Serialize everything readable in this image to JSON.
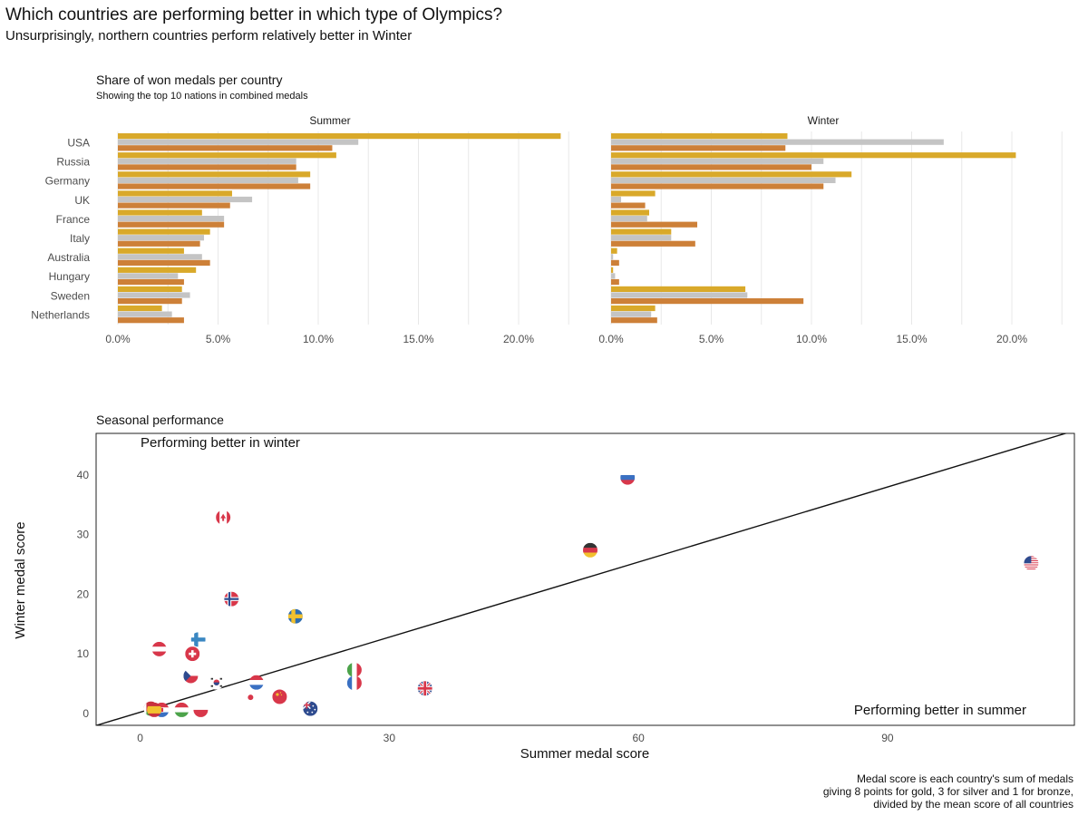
{
  "title": "Which countries are performing better in which type of Olympics?",
  "subtitle": "Unsurprisingly, northern countries perform relatively better in Winter",
  "colors": {
    "gold": "#D9A92A",
    "silver": "#C4C4C4",
    "bronze": "#CD8038",
    "grid": "#E8E8E8",
    "text": "#4D4D4D"
  },
  "bar_panel": {
    "title": "Share of won medals per country",
    "subtitle": "Showing the top 10 nations in combined medals"
  },
  "scatter_panel": {
    "title": "Seasonal performance",
    "annotation_winter": "Performing better in winter",
    "annotation_summer": "Performing better in summer"
  },
  "caption_lines": [
    "Medal score is each country's sum of medals",
    "giving 8 points for gold, 3 for silver and 1 for bronze,",
    "divided by the mean score of all countries"
  ],
  "chart_data": [
    {
      "type": "bar",
      "orientation": "horizontal",
      "facet": "Summer",
      "categories": [
        "USA",
        "Russia",
        "Germany",
        "UK",
        "France",
        "Italy",
        "Australia",
        "Hungary",
        "Sweden",
        "Netherlands"
      ],
      "series": [
        {
          "values": [
            22.1,
            10.9,
            9.6,
            5.7,
            4.2,
            4.6,
            3.3,
            3.9,
            3.2,
            2.2
          ]
        },
        {
          "values": [
            12.0,
            8.9,
            9.0,
            6.7,
            5.3,
            4.3,
            4.2,
            3.0,
            3.6,
            2.7
          ]
        },
        {
          "values": [
            10.7,
            8.9,
            9.6,
            5.6,
            5.3,
            4.1,
            4.6,
            3.3,
            3.2,
            3.3
          ]
        }
      ],
      "xlim": [
        0,
        23
      ],
      "xticks": [
        0,
        5,
        10,
        15,
        20
      ],
      "xtick_labels": [
        "0.0%",
        "5.0%",
        "10.0%",
        "15.0%",
        "20.0%"
      ],
      "grid": true
    },
    {
      "type": "bar",
      "orientation": "horizontal",
      "facet": "Winter",
      "categories": [
        "USA",
        "Russia",
        "Germany",
        "UK",
        "France",
        "Italy",
        "Australia",
        "Hungary",
        "Sweden",
        "Netherlands"
      ],
      "series": [
        {
          "values": [
            8.8,
            20.2,
            12.0,
            2.2,
            1.9,
            3.0,
            0.3,
            0.1,
            6.7,
            2.2
          ]
        },
        {
          "values": [
            16.6,
            10.6,
            11.2,
            0.5,
            1.8,
            3.0,
            0.1,
            0.2,
            6.8,
            2.0
          ]
        },
        {
          "values": [
            8.7,
            10.0,
            10.6,
            1.7,
            4.3,
            4.2,
            0.4,
            0.4,
            9.6,
            2.3
          ]
        }
      ],
      "xlim": [
        0,
        23
      ],
      "xticks": [
        0,
        5,
        10,
        15,
        20
      ],
      "xtick_labels": [
        "0.0%",
        "5.0%",
        "10.0%",
        "15.0%",
        "20.0%"
      ],
      "grid": true
    },
    {
      "type": "scatter",
      "xlabel": "Summer medal score",
      "ylabel": "Winter medal score",
      "xlim": [
        -5.3,
        112.5
      ],
      "ylim": [
        -2.0,
        47.0
      ],
      "xticks": [
        0,
        30,
        60,
        90
      ],
      "yticks": [
        0,
        10,
        20,
        30,
        40
      ],
      "reference_line": {
        "slope": 0.42,
        "intercept": 0.2
      },
      "points": [
        {
          "country": "USA",
          "flag": "us-flag",
          "x": 107.3,
          "y": 25.2
        },
        {
          "country": "Russia",
          "flag": "russia-flag",
          "x": 58.7,
          "y": 39.6
        },
        {
          "country": "Germany",
          "flag": "germany-flag",
          "x": 54.2,
          "y": 27.4
        },
        {
          "country": "UK",
          "flag": "uk-flag",
          "x": 34.3,
          "y": 4.2
        },
        {
          "country": "Italy",
          "flag": "italy-flag",
          "x": 25.8,
          "y": 7.3
        },
        {
          "country": "France",
          "flag": "france-flag",
          "x": 25.8,
          "y": 5.1
        },
        {
          "country": "Sweden",
          "flag": "sweden-flag",
          "x": 18.7,
          "y": 16.3
        },
        {
          "country": "Norway",
          "flag": "norway-flag",
          "x": 11.0,
          "y": 19.2
        },
        {
          "country": "Canada",
          "flag": "canada-flag",
          "x": 10.0,
          "y": 32.9
        },
        {
          "country": "Finland",
          "flag": "finland-flag",
          "x": 7.0,
          "y": 12.4
        },
        {
          "country": "Switzerland",
          "flag": "switzerland-flag",
          "x": 6.3,
          "y": 10.0
        },
        {
          "country": "Austria",
          "flag": "austria-flag",
          "x": 2.3,
          "y": 10.8
        },
        {
          "country": "Czechia",
          "flag": "czechia-flag",
          "x": 6.1,
          "y": 6.3
        },
        {
          "country": "South Korea",
          "flag": "south-korea-flag",
          "x": 9.2,
          "y": 5.2
        },
        {
          "country": "Netherlands",
          "flag": "netherlands-flag",
          "x": 14.0,
          "y": 5.2
        },
        {
          "country": "Japan",
          "flag": "japan-flag",
          "x": 13.3,
          "y": 2.7
        },
        {
          "country": "China",
          "flag": "china-flag",
          "x": 16.8,
          "y": 2.8
        },
        {
          "country": "Australia",
          "flag": "australia-flag",
          "x": 20.5,
          "y": 0.8
        },
        {
          "country": "Hungary",
          "flag": "hungary-flag",
          "x": 5.0,
          "y": 0.6
        },
        {
          "country": "Poland",
          "flag": "poland-flag",
          "x": 7.3,
          "y": 0.6
        },
        {
          "country": "Croatia",
          "flag": "croatia-flag",
          "x": 2.6,
          "y": 0.6
        },
        {
          "country": "Belarus",
          "flag": "belarus-flag",
          "x": 1.3,
          "y": 0.8
        },
        {
          "country": "Spain",
          "flag": "spain-flag",
          "x": 1.7,
          "y": 0.6
        }
      ]
    }
  ]
}
